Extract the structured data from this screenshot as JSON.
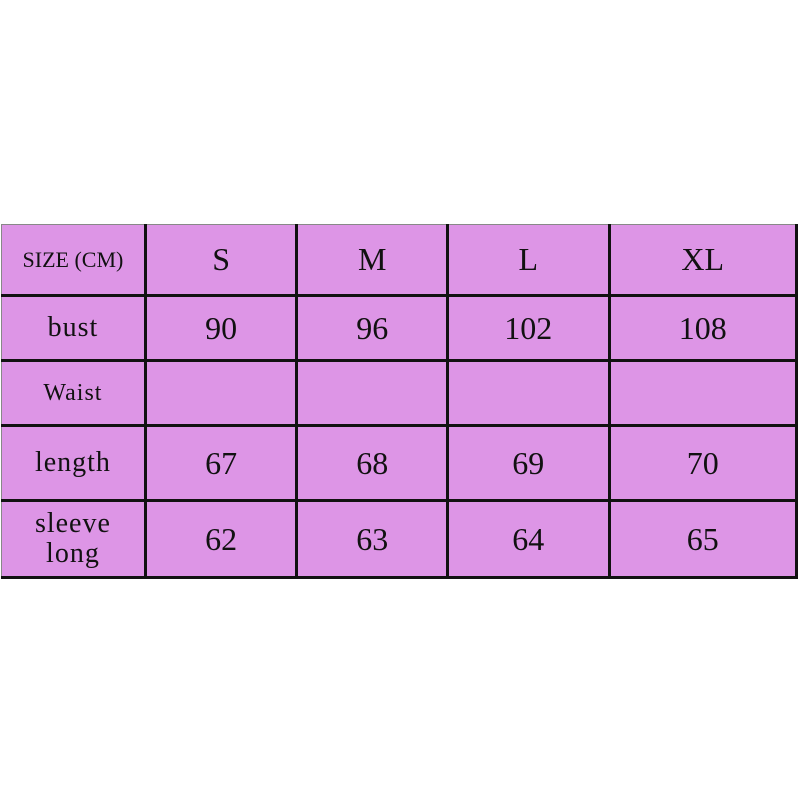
{
  "colors": {
    "fill": "#dd95e6",
    "border": "#111111"
  },
  "header": {
    "label": "SIZE (CM)",
    "sizes": [
      "S",
      "M",
      "L",
      "XL"
    ]
  },
  "rows": [
    {
      "label": "bust",
      "values": [
        "90",
        "96",
        "102",
        "108"
      ]
    },
    {
      "label": "Waist",
      "values": [
        "",
        "",
        "",
        ""
      ]
    },
    {
      "label": "length",
      "values": [
        "67",
        "68",
        "69",
        "70"
      ]
    },
    {
      "label": "sleeve long",
      "values": [
        "62",
        "63",
        "64",
        "65"
      ]
    }
  ]
}
